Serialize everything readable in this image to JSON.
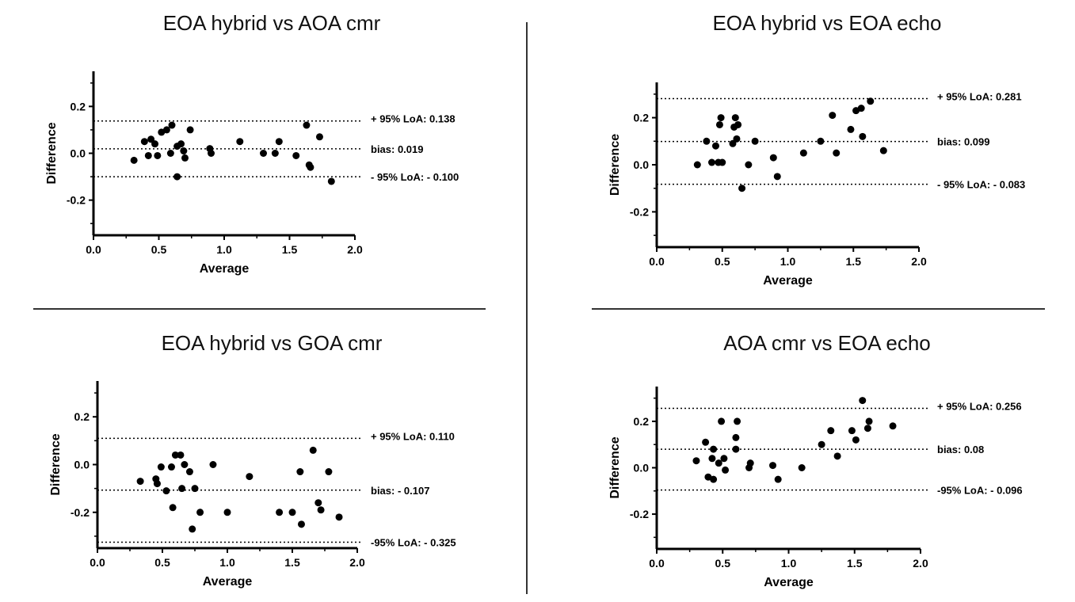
{
  "chart_data": [
    {
      "type": "scatter",
      "title": "EOA hybrid vs AOA cmr",
      "xlabel": "Average",
      "ylabel": "Difference",
      "xlim": [
        0.0,
        2.0
      ],
      "ylim": [
        -0.35,
        0.35
      ],
      "xticks": [
        "0.0",
        "0.5",
        "1.0",
        "1.5",
        "2.0"
      ],
      "yticks": [
        "-0.2",
        "0.0",
        "0.2"
      ],
      "lines": [
        {
          "label": "+ 95% LoA: 0.138",
          "y": 0.138
        },
        {
          "label": "bias: 0.019",
          "y": 0.019
        },
        {
          "label": "- 95% LoA: - 0.100",
          "y": -0.1
        }
      ],
      "points": [
        [
          0.31,
          -0.03
        ],
        [
          0.39,
          0.05
        ],
        [
          0.42,
          -0.01
        ],
        [
          0.44,
          0.06
        ],
        [
          0.47,
          0.04
        ],
        [
          0.49,
          -0.01
        ],
        [
          0.52,
          0.09
        ],
        [
          0.56,
          0.1
        ],
        [
          0.59,
          0.0
        ],
        [
          0.6,
          0.12
        ],
        [
          0.64,
          0.03
        ],
        [
          0.64,
          -0.1
        ],
        [
          0.67,
          0.04
        ],
        [
          0.69,
          0.01
        ],
        [
          0.7,
          -0.02
        ],
        [
          0.74,
          0.1
        ],
        [
          0.89,
          0.02
        ],
        [
          0.9,
          0.0
        ],
        [
          1.12,
          0.05
        ],
        [
          1.3,
          0.0
        ],
        [
          1.39,
          0.0
        ],
        [
          1.42,
          0.05
        ],
        [
          1.55,
          -0.01
        ],
        [
          1.63,
          0.12
        ],
        [
          1.65,
          -0.05
        ],
        [
          1.66,
          -0.06
        ],
        [
          1.73,
          0.07
        ],
        [
          1.82,
          -0.12
        ]
      ]
    },
    {
      "type": "scatter",
      "title": "EOA hybrid vs EOA echo",
      "xlabel": "Average",
      "ylabel": "Difference",
      "xlim": [
        0.0,
        2.0
      ],
      "ylim": [
        -0.35,
        0.35
      ],
      "xticks": [
        "0.0",
        "0.5",
        "1.0",
        "1.5",
        "2.0"
      ],
      "yticks": [
        "-0.2",
        "0.0",
        "0.2"
      ],
      "lines": [
        {
          "label": "+ 95% LoA: 0.281",
          "y": 0.281
        },
        {
          "label": "bias: 0.099",
          "y": 0.099
        },
        {
          "label": "- 95% LoA: - 0.083",
          "y": -0.083
        }
      ],
      "points": [
        [
          0.31,
          0.0
        ],
        [
          0.38,
          0.1
        ],
        [
          0.42,
          0.01
        ],
        [
          0.45,
          0.08
        ],
        [
          0.47,
          0.01
        ],
        [
          0.48,
          0.17
        ],
        [
          0.49,
          0.2
        ],
        [
          0.5,
          0.01
        ],
        [
          0.58,
          0.09
        ],
        [
          0.59,
          0.16
        ],
        [
          0.6,
          0.2
        ],
        [
          0.61,
          0.11
        ],
        [
          0.62,
          0.17
        ],
        [
          0.65,
          -0.1
        ],
        [
          0.7,
          0.0
        ],
        [
          0.75,
          0.1
        ],
        [
          0.89,
          0.03
        ],
        [
          0.92,
          -0.05
        ],
        [
          1.12,
          0.05
        ],
        [
          1.25,
          0.1
        ],
        [
          1.34,
          0.21
        ],
        [
          1.37,
          0.05
        ],
        [
          1.48,
          0.15
        ],
        [
          1.52,
          0.23
        ],
        [
          1.56,
          0.24
        ],
        [
          1.57,
          0.12
        ],
        [
          1.63,
          0.27
        ],
        [
          1.73,
          0.06
        ]
      ]
    },
    {
      "type": "scatter",
      "title": "EOA hybrid vs GOA cmr",
      "xlabel": "Average",
      "ylabel": "Difference",
      "xlim": [
        0.0,
        2.0
      ],
      "ylim": [
        -0.35,
        0.35
      ],
      "xticks": [
        "0.0",
        "0.5",
        "1.0",
        "1.5",
        "2.0"
      ],
      "yticks": [
        "-0.2",
        "0.0",
        "0.2"
      ],
      "lines": [
        {
          "label": "+ 95% LoA: 0.110",
          "y": 0.11
        },
        {
          "label": "bias: - 0.107",
          "y": -0.107
        },
        {
          "label": "-95% LoA: - 0.325",
          "y": -0.325
        }
      ],
      "points": [
        [
          0.33,
          -0.07
        ],
        [
          0.45,
          -0.06
        ],
        [
          0.46,
          -0.08
        ],
        [
          0.49,
          -0.01
        ],
        [
          0.53,
          -0.11
        ],
        [
          0.57,
          -0.01
        ],
        [
          0.58,
          -0.18
        ],
        [
          0.6,
          0.04
        ],
        [
          0.64,
          0.04
        ],
        [
          0.65,
          -0.1
        ],
        [
          0.67,
          0.0
        ],
        [
          0.71,
          -0.03
        ],
        [
          0.73,
          -0.27
        ],
        [
          0.75,
          -0.1
        ],
        [
          0.79,
          -0.2
        ],
        [
          0.89,
          0.0
        ],
        [
          1.0,
          -0.2
        ],
        [
          1.17,
          -0.05
        ],
        [
          1.4,
          -0.2
        ],
        [
          1.5,
          -0.2
        ],
        [
          1.56,
          -0.03
        ],
        [
          1.57,
          -0.25
        ],
        [
          1.66,
          0.06
        ],
        [
          1.7,
          -0.16
        ],
        [
          1.72,
          -0.19
        ],
        [
          1.78,
          -0.03
        ],
        [
          1.86,
          -0.22
        ]
      ]
    },
    {
      "type": "scatter",
      "title": "AOA cmr vs EOA echo",
      "xlabel": "Average",
      "ylabel": "Difference",
      "xlim": [
        0.0,
        2.0
      ],
      "ylim": [
        -0.35,
        0.35
      ],
      "xticks": [
        "0.0",
        "0.5",
        "1.0",
        "1.5",
        "2.0"
      ],
      "yticks": [
        "-0.2",
        "0.0",
        "0.2"
      ],
      "lines": [
        {
          "label": "+ 95% LoA: 0.256",
          "y": 0.256
        },
        {
          "label": "bias: 0.08",
          "y": 0.08
        },
        {
          "label": "-95% LoA: - 0.096",
          "y": -0.096
        }
      ],
      "points": [
        [
          0.3,
          0.03
        ],
        [
          0.37,
          0.11
        ],
        [
          0.39,
          -0.04
        ],
        [
          0.42,
          0.04
        ],
        [
          0.43,
          -0.05
        ],
        [
          0.43,
          0.08
        ],
        [
          0.47,
          0.02
        ],
        [
          0.49,
          0.2
        ],
        [
          0.51,
          0.04
        ],
        [
          0.52,
          -0.01
        ],
        [
          0.6,
          0.08
        ],
        [
          0.6,
          0.13
        ],
        [
          0.61,
          0.2
        ],
        [
          0.7,
          0.0
        ],
        [
          0.71,
          0.02
        ],
        [
          0.88,
          0.01
        ],
        [
          0.92,
          -0.05
        ],
        [
          1.1,
          0.0
        ],
        [
          1.25,
          0.1
        ],
        [
          1.32,
          0.16
        ],
        [
          1.37,
          0.05
        ],
        [
          1.48,
          0.16
        ],
        [
          1.51,
          0.12
        ],
        [
          1.56,
          0.29
        ],
        [
          1.6,
          0.17
        ],
        [
          1.61,
          0.2
        ],
        [
          1.79,
          0.18
        ]
      ]
    }
  ]
}
